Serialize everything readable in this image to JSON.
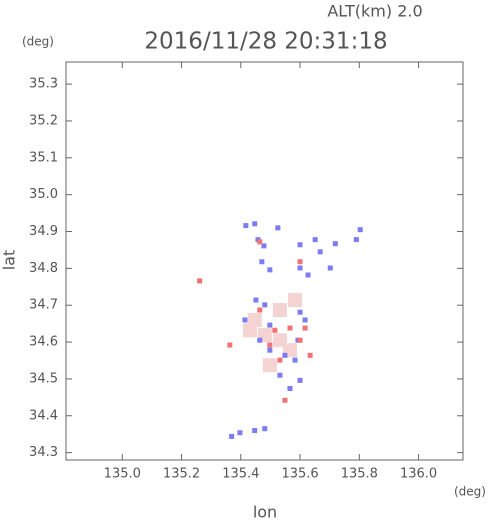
{
  "chart_data": {
    "type": "scatter",
    "title": "2016/11/28 20:31:18",
    "subtitle": "ALT(km) 2.0",
    "y_unit": "(deg)",
    "x_unit": "(deg)",
    "xlabel": "lon",
    "ylabel": "lat",
    "xlim": [
      134.81,
      136.15
    ],
    "ylim": [
      34.28,
      35.36
    ],
    "xticks": [
      {
        "value": 135,
        "label": "135.0"
      },
      135.2,
      135.4,
      135.6,
      135.8,
      {
        "value": 136,
        "label": "136.0"
      }
    ],
    "yticks": [
      34.3,
      34.4,
      34.5,
      34.6,
      34.7,
      34.8,
      34.9,
      {
        "value": 35,
        "label": "35.0"
      },
      35.1,
      35.2,
      35.3
    ],
    "series": [
      {
        "color": "#f5d3d3",
        "x": [
          135.431,
          135.481,
          135.532,
          135.447,
          135.566,
          135.498,
          135.532,
          135.583
        ],
        "values": [
          34.632,
          34.619,
          34.605,
          34.66,
          34.578,
          34.537,
          34.687,
          34.714
        ]
      },
      {
        "color": "#7c7cf2",
        "x": [
          135.417,
          135.447,
          135.525,
          135.458,
          135.478,
          135.471,
          135.498,
          135.6,
          135.651,
          135.668,
          135.719,
          135.79,
          135.803,
          135.6,
          135.627,
          135.702,
          135.451,
          135.481,
          135.498,
          135.6,
          135.617,
          135.593,
          135.498,
          135.549,
          135.583,
          135.532,
          135.6,
          135.566,
          135.414,
          135.464,
          135.397,
          135.447,
          135.481,
          135.369
        ],
        "values": [
          34.916,
          34.921,
          34.91,
          34.878,
          34.861,
          34.818,
          34.796,
          34.864,
          34.878,
          34.845,
          34.867,
          34.878,
          34.905,
          34.801,
          34.782,
          34.801,
          34.714,
          34.701,
          34.646,
          34.681,
          34.66,
          34.605,
          34.578,
          34.564,
          34.551,
          34.51,
          34.496,
          34.474,
          34.66,
          34.605,
          34.354,
          34.36,
          34.365,
          34.344
        ]
      },
      {
        "color": "#f07272",
        "x": [
          135.261,
          135.464,
          135.6,
          135.566,
          135.6,
          135.498,
          135.532,
          135.549,
          135.363,
          135.617,
          135.634,
          135.515,
          135.464
        ],
        "values": [
          34.766,
          34.872,
          34.818,
          34.638,
          34.605,
          34.592,
          34.551,
          34.442,
          34.592,
          34.638,
          34.564,
          34.632,
          34.687
        ]
      }
    ]
  }
}
